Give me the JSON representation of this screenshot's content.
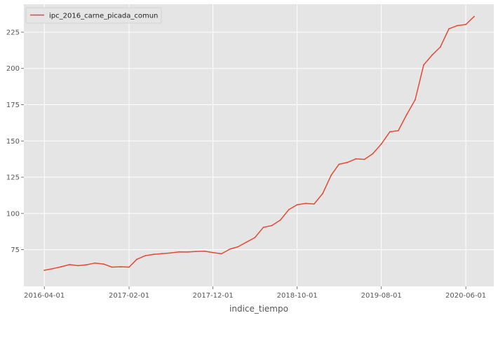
{
  "chart_data": {
    "type": "line",
    "title": "",
    "xlabel": "indice_tiempo",
    "ylabel": "",
    "x_tick_labels": [
      "2016-04-01",
      "2017-02-01",
      "2017-12-01",
      "2018-10-01",
      "2019-08-01",
      "2020-06-01"
    ],
    "y_ticks": [
      75,
      100,
      125,
      150,
      175,
      200,
      225
    ],
    "ylim": [
      49.7,
      244.3
    ],
    "xlim": [
      "2016-01-18",
      "2020-09-10"
    ],
    "grid": true,
    "legend_position": "upper-left",
    "series": [
      {
        "name": "ipc_2016_carne_picada_comun",
        "color": "#E24A33",
        "x": [
          "2016-04-01",
          "2016-05-01",
          "2016-06-01",
          "2016-07-01",
          "2016-08-01",
          "2016-09-01",
          "2016-10-01",
          "2016-11-01",
          "2016-12-01",
          "2017-01-01",
          "2017-02-01",
          "2017-03-01",
          "2017-04-01",
          "2017-05-01",
          "2017-06-01",
          "2017-07-01",
          "2017-08-01",
          "2017-09-01",
          "2017-10-01",
          "2017-11-01",
          "2017-12-01",
          "2018-01-01",
          "2018-02-01",
          "2018-03-01",
          "2018-04-01",
          "2018-05-01",
          "2018-06-01",
          "2018-07-01",
          "2018-08-01",
          "2018-09-01",
          "2018-10-01",
          "2018-11-01",
          "2018-12-01",
          "2019-01-01",
          "2019-02-01",
          "2019-03-01",
          "2019-04-01",
          "2019-05-01",
          "2019-06-01",
          "2019-07-01",
          "2019-08-01",
          "2019-09-01",
          "2019-10-01",
          "2019-11-01",
          "2019-12-01",
          "2020-01-01",
          "2020-02-01",
          "2020-03-01",
          "2020-04-01",
          "2020-05-01",
          "2020-06-01",
          "2020-07-01"
        ],
        "values": [
          60.8,
          61.9,
          63.2,
          64.7,
          64.0,
          64.6,
          65.8,
          65.1,
          63.0,
          63.2,
          63.0,
          68.4,
          70.9,
          71.8,
          72.3,
          72.8,
          73.5,
          73.4,
          73.8,
          74.0,
          73.0,
          72.2,
          75.5,
          77.0,
          80.2,
          83.3,
          90.4,
          91.6,
          95.4,
          102.6,
          106.0,
          106.9,
          106.5,
          113.7,
          126.4,
          133.9,
          135.2,
          137.7,
          137.3,
          141.2,
          147.9,
          156.3,
          157.1,
          168.3,
          178.4,
          202.5,
          209.4,
          214.8,
          227.3,
          229.5,
          230.3,
          235.8
        ]
      }
    ]
  }
}
